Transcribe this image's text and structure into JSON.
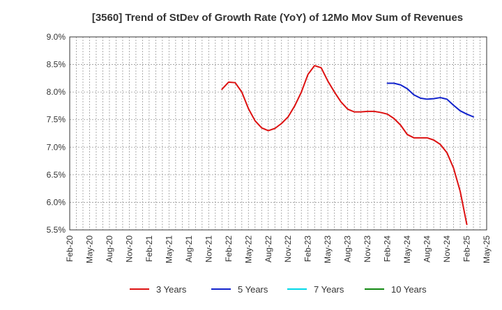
{
  "chart_data": {
    "type": "line",
    "title": "[3560]  Trend of StDev of Growth Rate (YoY) of 12Mo Mov Sum of Revenues",
    "xlabel": "",
    "ylabel": "",
    "ylim": [
      5.5,
      9.0
    ],
    "y_ticks": [
      5.5,
      6.0,
      6.5,
      7.0,
      7.5,
      8.0,
      8.5,
      9.0
    ],
    "y_tick_labels": [
      "5.5%",
      "6.0%",
      "6.5%",
      "7.0%",
      "7.5%",
      "8.0%",
      "8.5%",
      "9.0%"
    ],
    "x_tick_labels": [
      "Feb-20",
      "May-20",
      "Aug-20",
      "Nov-20",
      "Feb-21",
      "May-21",
      "Aug-21",
      "Nov-21",
      "Feb-22",
      "May-22",
      "Aug-22",
      "Nov-22",
      "Feb-23",
      "May-23",
      "Aug-23",
      "Nov-23",
      "Feb-24",
      "May-24",
      "Aug-24",
      "Nov-24",
      "Feb-25",
      "May-25"
    ],
    "x_start": "Feb-20",
    "x_months": 63,
    "grid": true,
    "legend_position": "bottom",
    "series": [
      {
        "name": "3 Years",
        "color": "#dd1111",
        "start_month_index": 23,
        "values": [
          8.05,
          8.18,
          8.17,
          8.0,
          7.7,
          7.48,
          7.35,
          7.3,
          7.34,
          7.43,
          7.55,
          7.75,
          8.0,
          8.32,
          8.48,
          8.44,
          8.2,
          8.0,
          7.82,
          7.69,
          7.64,
          7.64,
          7.65,
          7.65,
          7.63,
          7.6,
          7.52,
          7.4,
          7.23,
          7.17,
          7.17,
          7.17,
          7.13,
          7.05,
          6.9,
          6.62,
          6.2,
          5.6
        ]
      },
      {
        "name": "5 Years",
        "color": "#1122cc",
        "start_month_index": 48,
        "values": [
          8.16,
          8.16,
          8.13,
          8.06,
          7.95,
          7.89,
          7.87,
          7.88,
          7.9,
          7.87,
          7.76,
          7.66,
          7.6,
          7.55
        ]
      },
      {
        "name": "7 Years",
        "color": "#00d8e8",
        "start_month_index": 0,
        "values": []
      },
      {
        "name": "10 Years",
        "color": "#118811",
        "start_month_index": 0,
        "values": []
      }
    ]
  }
}
